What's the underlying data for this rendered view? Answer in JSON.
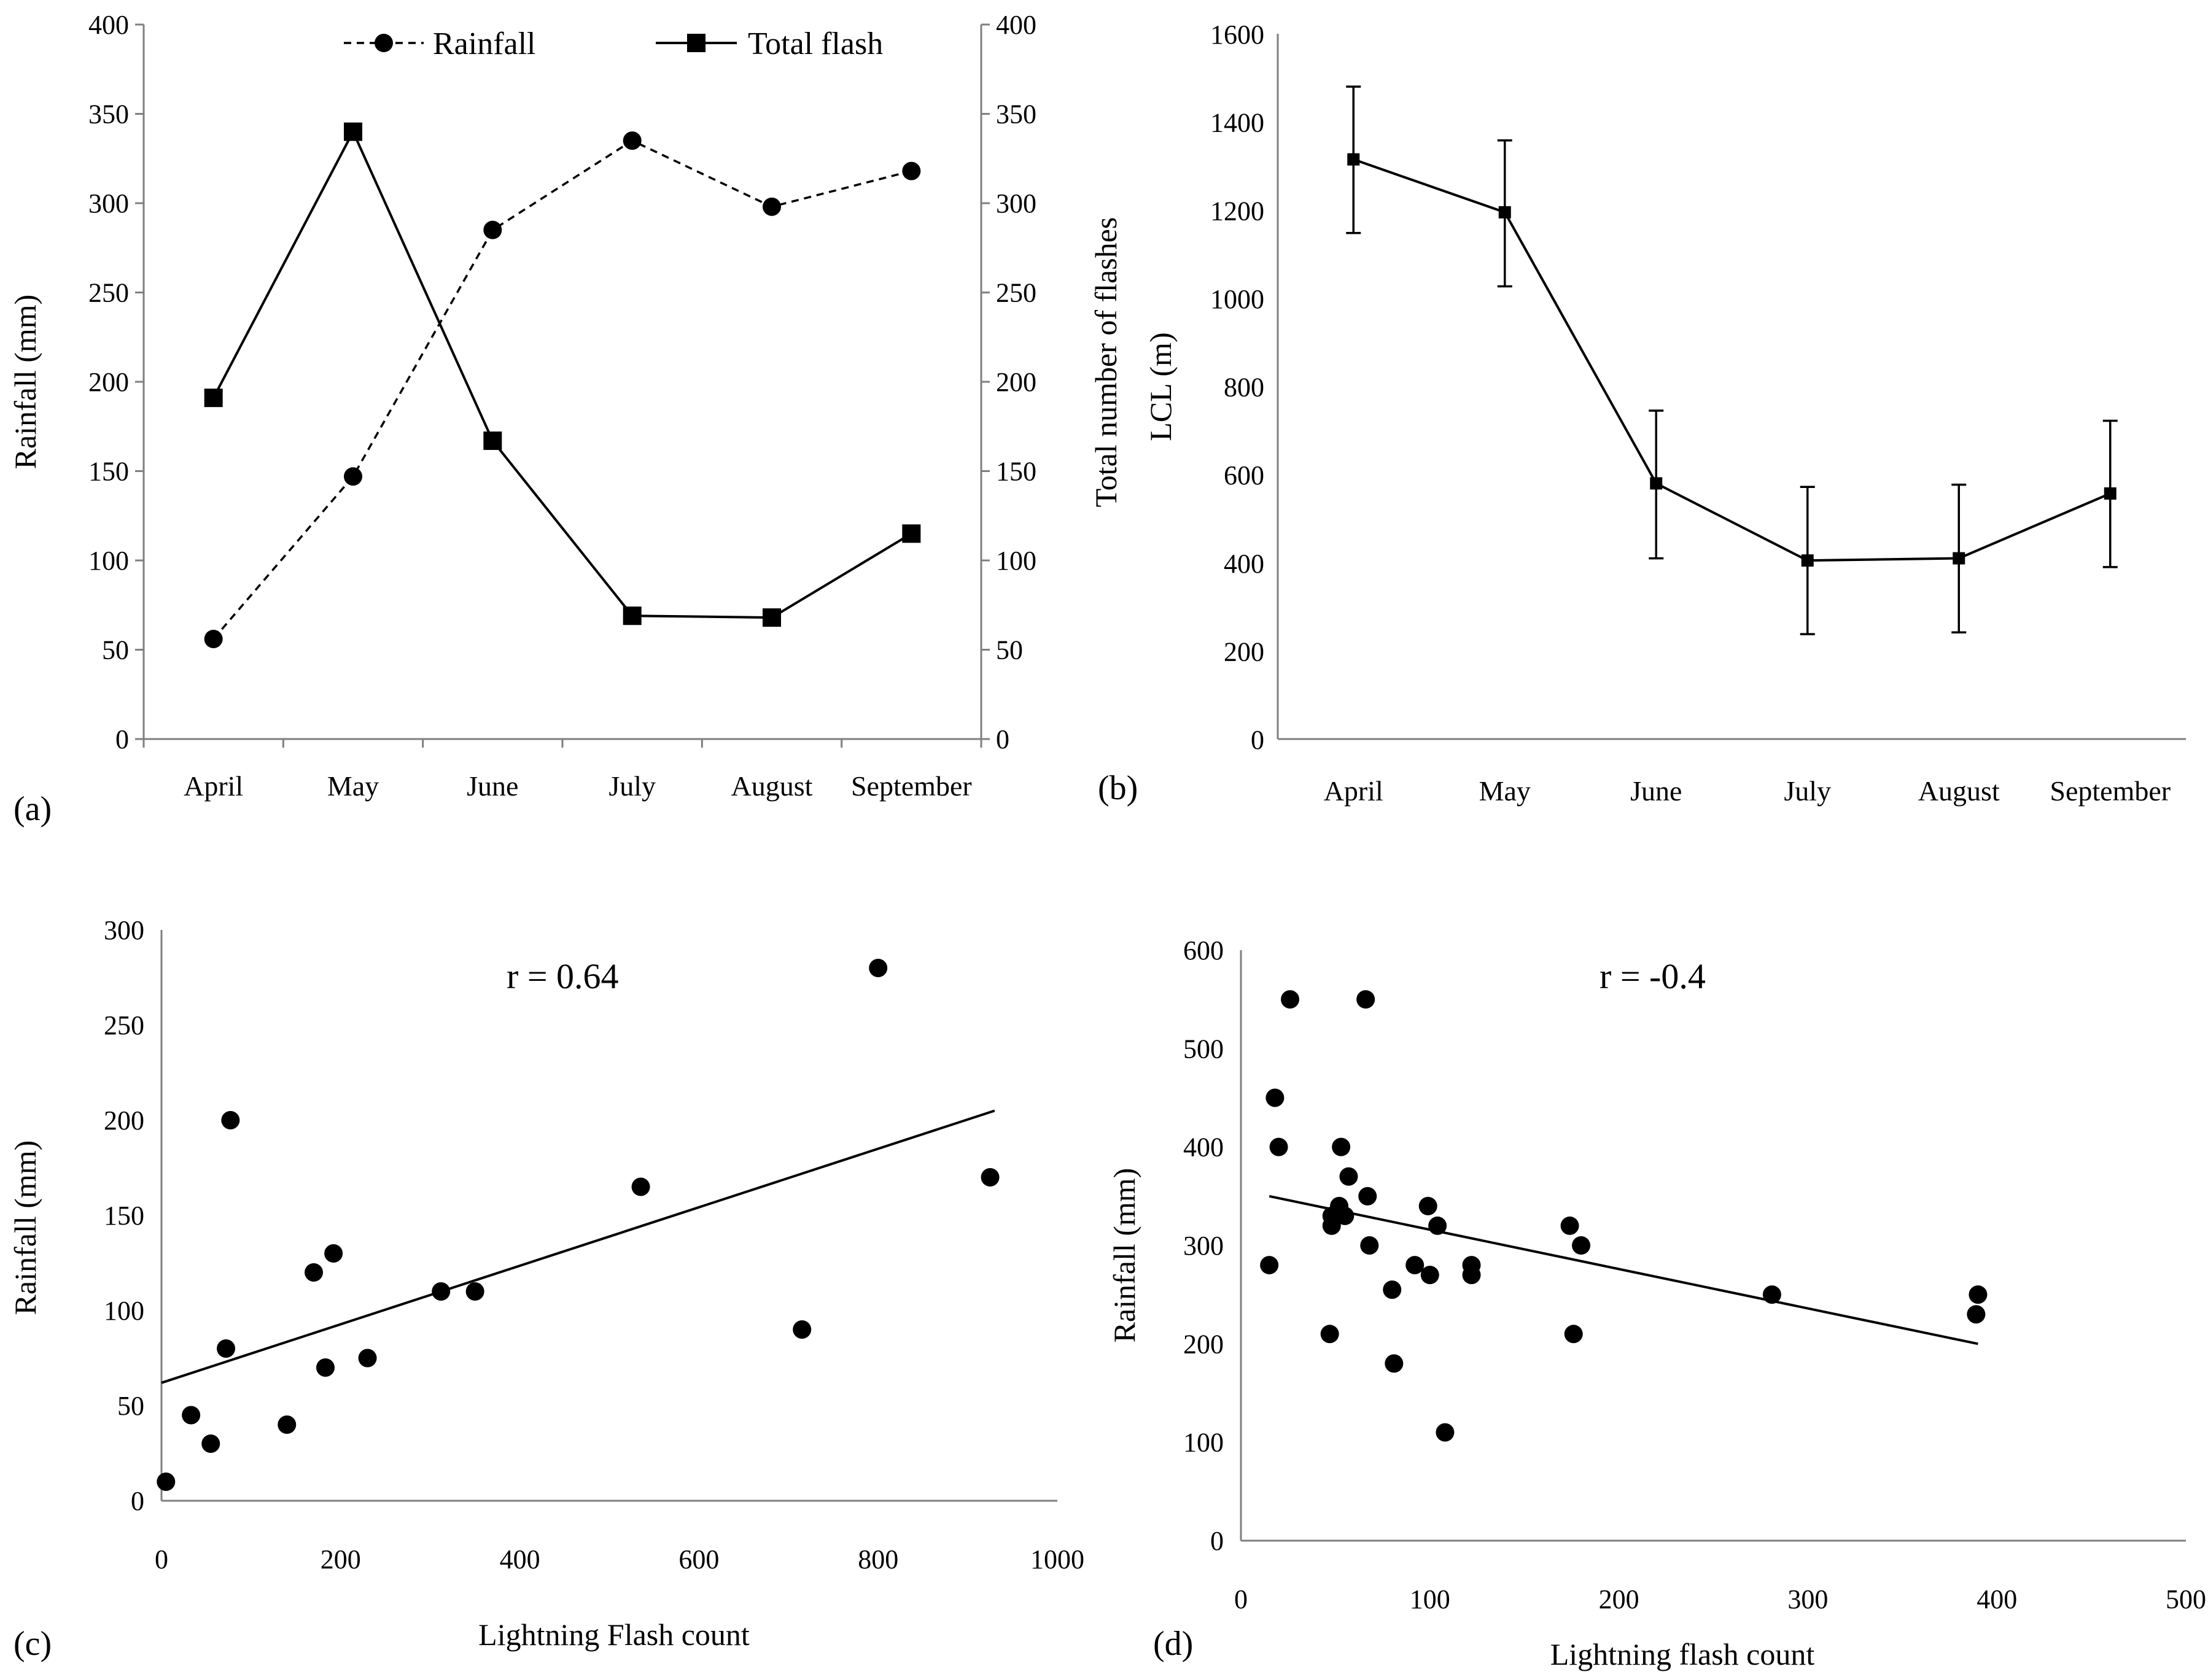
{
  "chart_data": [
    {
      "panel": "(a)",
      "type": "line",
      "categories": [
        "April",
        "May",
        "June",
        "July",
        "August",
        "September"
      ],
      "series": [
        {
          "name": "Rainfall",
          "axis": "left",
          "style": "dashed",
          "marker": "circle",
          "values": [
            56,
            147,
            285,
            335,
            298,
            318
          ]
        },
        {
          "name": "Total flash",
          "axis": "right",
          "style": "solid",
          "marker": "square",
          "values": [
            191,
            340,
            167,
            69,
            68,
            115
          ]
        }
      ],
      "ylabel": "Rainfall (mm)",
      "y2label": "Total number of flashes",
      "ylim": [
        0,
        400
      ],
      "y2lim": [
        0,
        400
      ],
      "yticks": [
        "0",
        "50",
        "100",
        "150",
        "200",
        "250",
        "300",
        "350",
        "400"
      ],
      "y2ticks": [
        "0",
        "50",
        "100",
        "150",
        "200",
        "250",
        "300",
        "350",
        "400"
      ],
      "legend": "top"
    },
    {
      "panel": "(b)",
      "type": "line",
      "categories": [
        "April",
        "May",
        "June",
        "July",
        "August",
        "September"
      ],
      "series": [
        {
          "name": "LCL",
          "marker": "square",
          "values": [
            1315,
            1195,
            580,
            405,
            410,
            557
          ],
          "err_low": [
            1148,
            1027,
            410,
            238,
            242,
            390
          ],
          "err_high": [
            1480,
            1358,
            745,
            572,
            577,
            722
          ]
        }
      ],
      "ylabel": "LCL (m)",
      "ylim": [
        0,
        1600
      ],
      "yticks": [
        "0",
        "200",
        "400",
        "600",
        "800",
        "1000",
        "1200",
        "1400",
        "1600"
      ]
    },
    {
      "panel": "(c)",
      "type": "scatter",
      "points": [
        [
          5,
          10
        ],
        [
          33,
          45
        ],
        [
          55,
          30
        ],
        [
          72,
          80
        ],
        [
          77,
          200
        ],
        [
          140,
          40
        ],
        [
          170,
          120
        ],
        [
          183,
          70
        ],
        [
          192,
          130
        ],
        [
          230,
          75
        ],
        [
          312,
          110
        ],
        [
          350,
          110
        ],
        [
          535,
          165
        ],
        [
          715,
          90
        ],
        [
          800,
          280
        ],
        [
          925,
          170
        ]
      ],
      "trendline": [
        [
          0,
          62
        ],
        [
          930,
          205
        ]
      ],
      "annotation": "r = 0.64",
      "xlabel": "Lightning Flash count",
      "ylabel": "Rainfall (mm)",
      "xlim": [
        0,
        1000
      ],
      "ylim": [
        0,
        300
      ],
      "xticks": [
        "0",
        "200",
        "400",
        "600",
        "800",
        "1000"
      ],
      "yticks": [
        "0",
        "50",
        "100",
        "150",
        "200",
        "250",
        "300"
      ]
    },
    {
      "panel": "(d)",
      "type": "scatter",
      "points": [
        [
          15,
          280
        ],
        [
          18,
          450
        ],
        [
          20,
          400
        ],
        [
          26,
          550
        ],
        [
          47,
          210
        ],
        [
          48,
          320
        ],
        [
          48,
          330
        ],
        [
          52,
          340
        ],
        [
          53,
          400
        ],
        [
          55,
          330
        ],
        [
          57,
          370
        ],
        [
          66,
          550
        ],
        [
          67,
          350
        ],
        [
          68,
          300
        ],
        [
          80,
          255
        ],
        [
          81,
          180
        ],
        [
          92,
          280
        ],
        [
          99,
          340
        ],
        [
          100,
          270
        ],
        [
          104,
          320
        ],
        [
          108,
          110
        ],
        [
          122,
          280
        ],
        [
          122,
          270
        ],
        [
          174,
          320
        ],
        [
          176,
          210
        ],
        [
          180,
          300
        ],
        [
          281,
          250
        ],
        [
          389,
          230
        ],
        [
          390,
          250
        ]
      ],
      "trendline": [
        [
          15,
          350
        ],
        [
          390,
          200
        ]
      ],
      "annotation": "r = -0.4",
      "xlabel": "Lightning flash count",
      "ylabel": "Rainfall (mm)",
      "xlim": [
        0,
        500
      ],
      "ylim": [
        0,
        600
      ],
      "xticks": [
        "0",
        "100",
        "200",
        "300",
        "400",
        "500"
      ],
      "yticks": [
        "0",
        "100",
        "200",
        "300",
        "400",
        "500",
        "600"
      ]
    }
  ]
}
